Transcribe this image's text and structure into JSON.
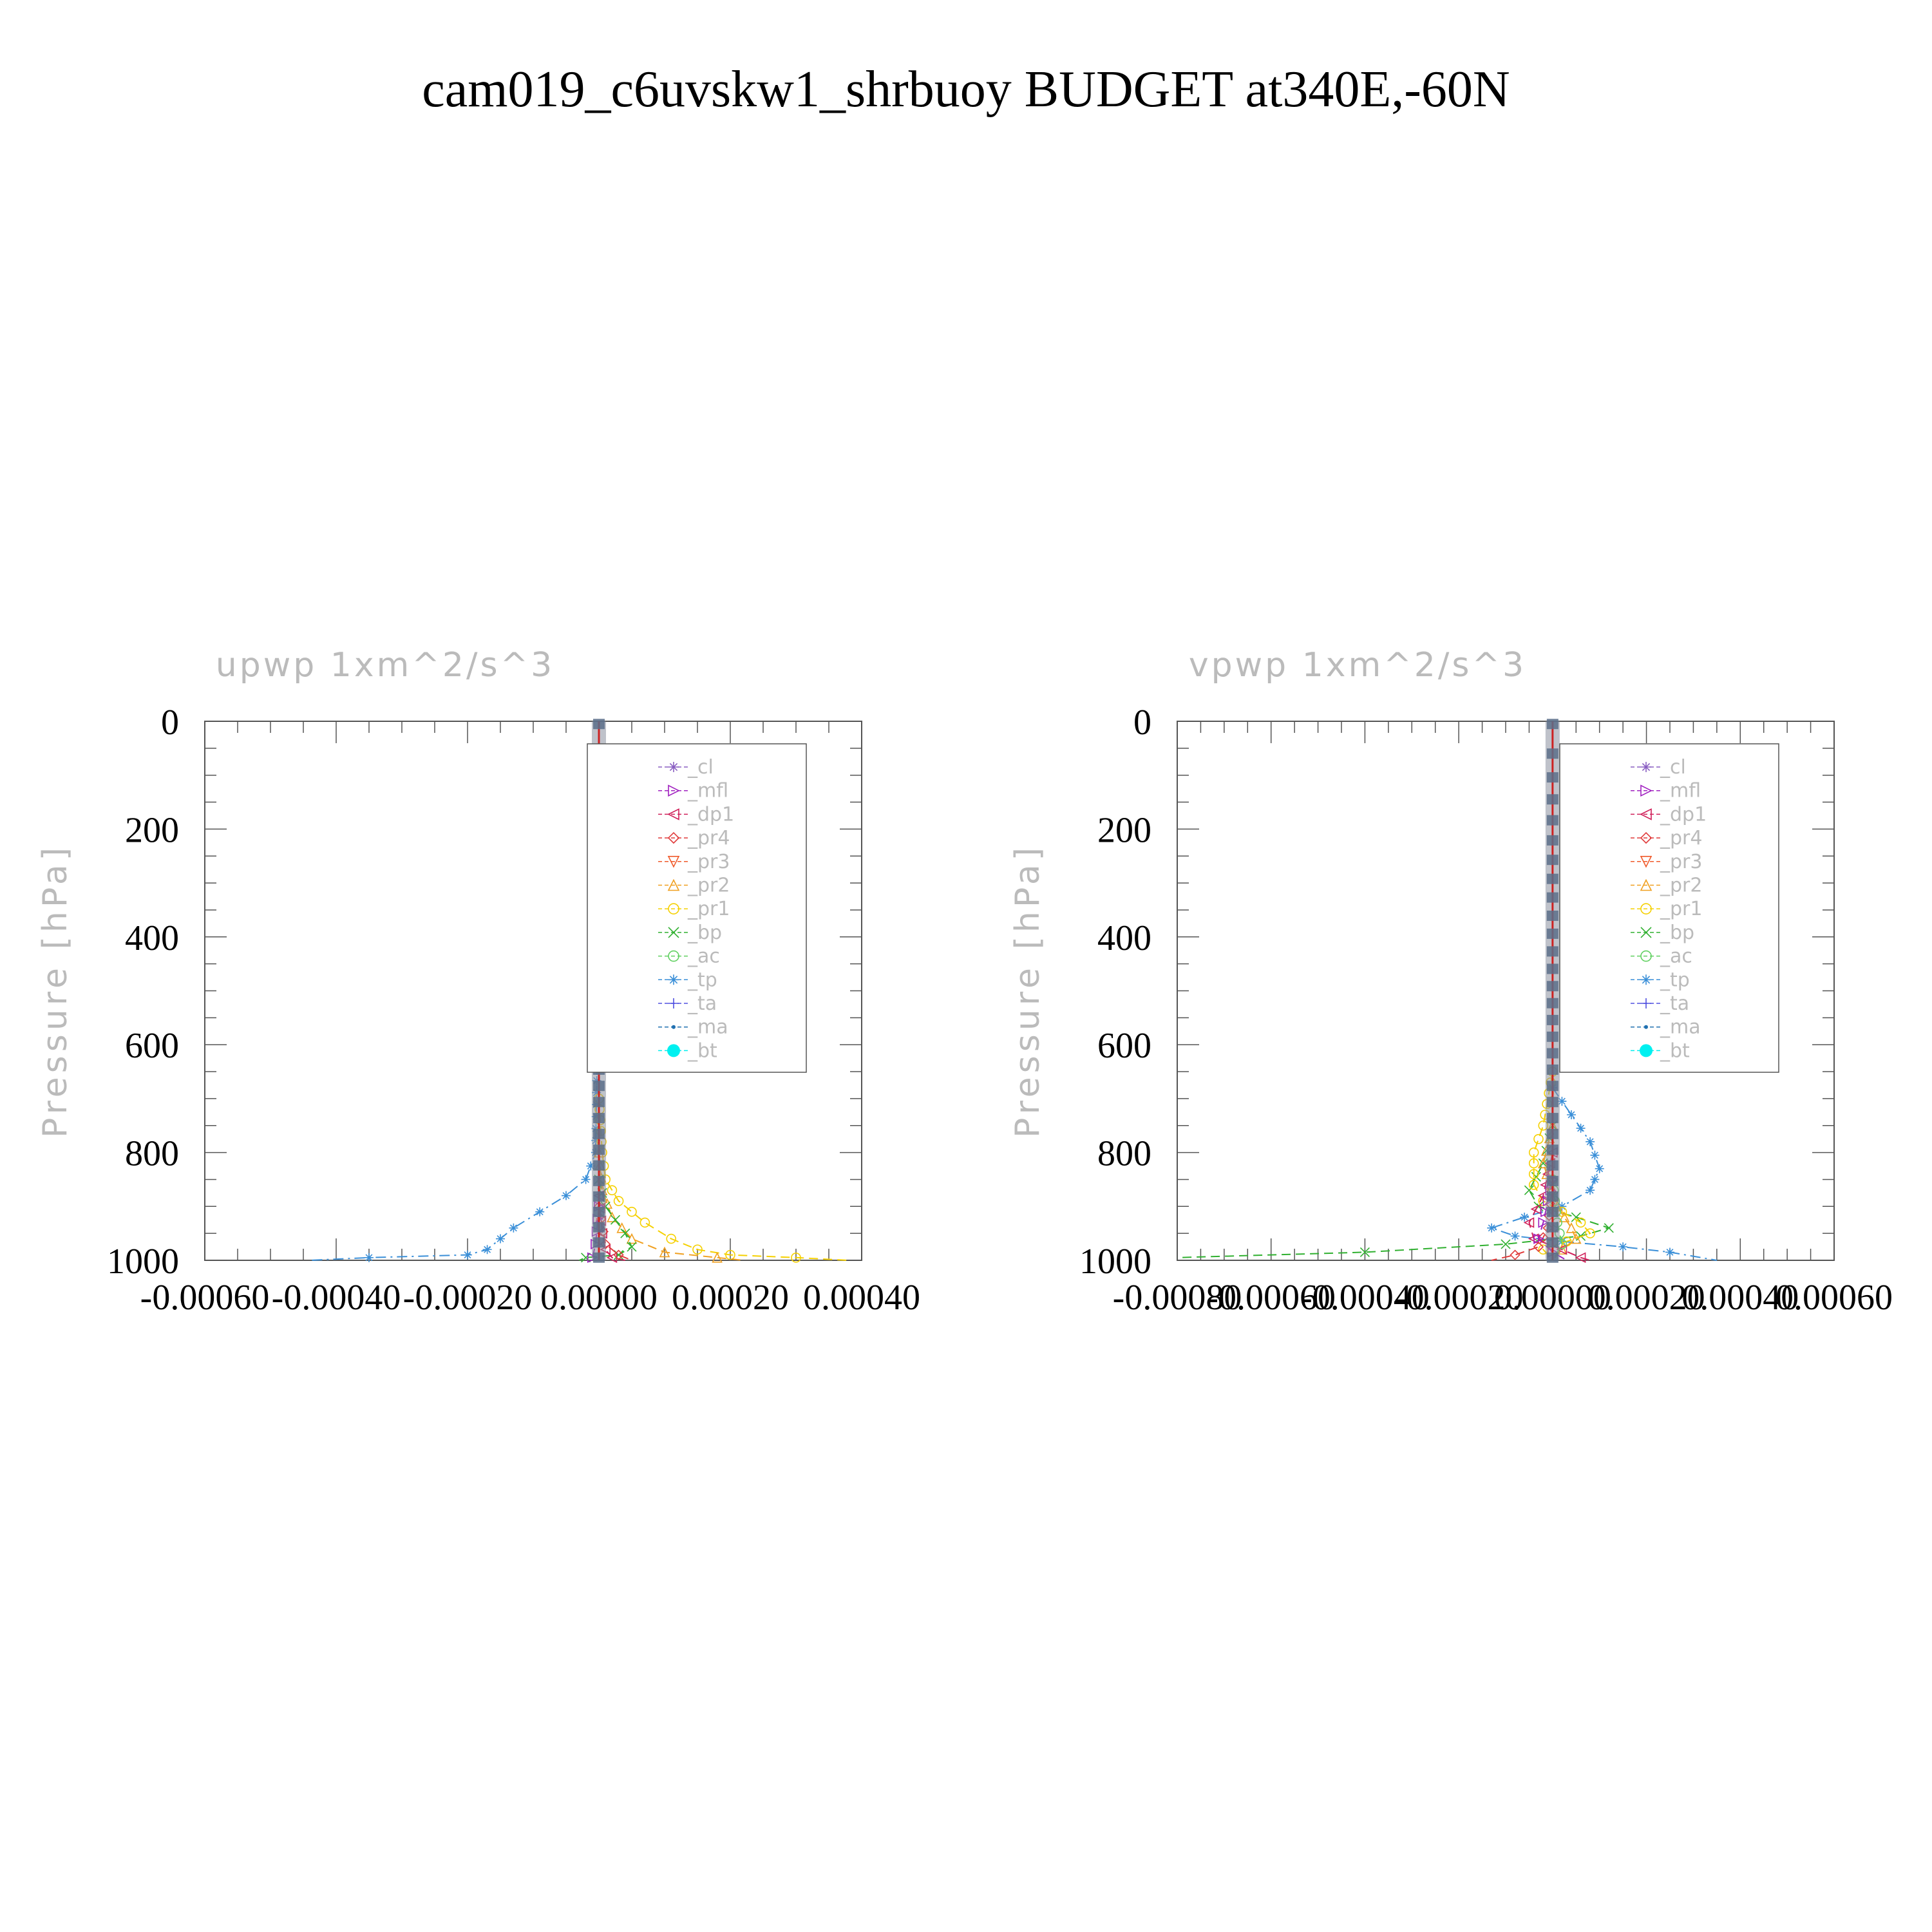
{
  "figure_title": "cam019_c6uvskw1_shrbuoy  BUDGET at340E,-60N",
  "legend_entries": [
    "_cl",
    "_mfl",
    "_dp1",
    "_pr4",
    "_pr3",
    "_pr2",
    "_pr1",
    "_bp",
    "_ac",
    "_tp",
    "_ta",
    "_ma",
    "_bt"
  ],
  "colors": {
    "_cl": "#8a5fc2",
    "_mfl": "#a020c0",
    "_dp1": "#d0205a",
    "_pr4": "#e03a3a",
    "_pr3": "#f05a2a",
    "_pr2": "#f0a020",
    "_pr1": "#f5d000",
    "_bp": "#30b030",
    "_ac": "#60d060",
    "_tp": "#3a8fd8",
    "_ta": "#5050e0",
    "_ma": "#2070b0",
    "_bt": "#00f0f0",
    "axis": "#555555",
    "muted_text": "#bbbbbb",
    "center_marker": "#5a6e8a",
    "center_line": "#cc2222"
  },
  "chart_data": [
    {
      "type": "line",
      "title": "upwp   1xm^2/s^3",
      "ylabel": "Pressure [hPa]",
      "xlabel": "",
      "xlim": [
        -0.0006,
        0.0004
      ],
      "ylim": [
        1000,
        0
      ],
      "y_inverted": true,
      "xticks": [
        -0.0006,
        -0.0004,
        -0.0002,
        0.0,
        0.0002,
        0.0004
      ],
      "xtick_labels": [
        "-0.00060",
        "-0.00040",
        "-0.00020",
        "0.00000",
        "0.00020",
        "0.00040"
      ],
      "yticks": [
        0,
        200,
        400,
        600,
        800,
        1000
      ],
      "ytick_labels": [
        "0",
        "200",
        "400",
        "600",
        "800",
        "1000"
      ],
      "legend": "top-right",
      "grid": false,
      "series": [
        {
          "name": "_tp",
          "style": "dash-dot",
          "points": [
            [
              0,
              400
            ],
            [
              -5e-06,
              800
            ],
            [
              -2e-05,
              850
            ],
            [
              -5e-05,
              880
            ],
            [
              -9e-05,
              910
            ],
            [
              -0.00013,
              940
            ],
            [
              -0.00015,
              960
            ],
            [
              -0.00017,
              980
            ],
            [
              -0.0002,
              990
            ],
            [
              -0.00035,
              995
            ],
            [
              -0.00044,
              1000
            ]
          ]
        },
        {
          "name": "_pr1",
          "style": "dash",
          "points": [
            [
              0,
              700
            ],
            [
              5e-06,
              800
            ],
            [
              1e-05,
              850
            ],
            [
              3e-05,
              890
            ],
            [
              7e-05,
              930
            ],
            [
              0.00011,
              960
            ],
            [
              0.00015,
              980
            ],
            [
              0.0002,
              990
            ],
            [
              0.0003,
              995
            ],
            [
              0.00038,
              1000
            ]
          ]
        },
        {
          "name": "_pr2",
          "style": "dash",
          "points": [
            [
              0,
              800
            ],
            [
              5e-06,
              870
            ],
            [
              2e-05,
              920
            ],
            [
              5e-05,
              960
            ],
            [
              0.0001,
              985
            ],
            [
              0.00018,
              995
            ],
            [
              0.00022,
              1000
            ]
          ]
        },
        {
          "name": "_bp",
          "style": "dash",
          "points": [
            [
              0,
              850
            ],
            [
              1e-05,
              900
            ],
            [
              4e-05,
              950
            ],
            [
              5e-05,
              975
            ],
            [
              3e-05,
              990
            ],
            [
              -2e-05,
              995
            ],
            [
              -3e-05,
              1000
            ]
          ]
        },
        {
          "name": "_dp1",
          "style": "dash",
          "points": [
            [
              0,
              880
            ],
            [
              5e-06,
              950
            ],
            [
              1e-05,
              980
            ],
            [
              2e-05,
              995
            ],
            [
              4e-05,
              1000
            ]
          ]
        },
        {
          "name": "_pr4",
          "style": "dash",
          "points": [
            [
              0,
              900
            ],
            [
              1e-05,
              970
            ],
            [
              3e-05,
              990
            ],
            [
              5e-05,
              1000
            ]
          ]
        },
        {
          "name": "_mfl",
          "style": "dash",
          "points": [
            [
              0,
              900
            ],
            [
              -5e-06,
              970
            ],
            [
              -1e-05,
              995
            ],
            [
              0,
              1000
            ]
          ]
        }
      ]
    },
    {
      "type": "line",
      "title": "vpwp   1xm^2/s^3",
      "ylabel": "Pressure [hPa]",
      "xlabel": "",
      "xlim": [
        -0.0008,
        0.0006
      ],
      "ylim": [
        1000,
        0
      ],
      "y_inverted": true,
      "xticks": [
        -0.0008,
        -0.0006,
        -0.0004,
        -0.0002,
        0.0,
        0.0002,
        0.0004,
        0.0006
      ],
      "xtick_labels": [
        "-0.00080",
        "-0.00060",
        "-0.00040",
        "-0.00020",
        "0.00000",
        "0.00020",
        "0.00040",
        "0.00060"
      ],
      "yticks": [
        0,
        200,
        400,
        600,
        800,
        1000
      ],
      "ytick_labels": [
        "0",
        "200",
        "400",
        "600",
        "800",
        "1000"
      ],
      "legend": "top-right",
      "grid": false,
      "series": [
        {
          "name": "_tp",
          "style": "dash-dot",
          "points": [
            [
              0,
              680
            ],
            [
              4e-05,
              730
            ],
            [
              8e-05,
              780
            ],
            [
              0.0001,
              830
            ],
            [
              8e-05,
              870
            ],
            [
              2e-05,
              900
            ],
            [
              -6e-05,
              920
            ],
            [
              -0.00013,
              940
            ],
            [
              -8e-05,
              955
            ],
            [
              2e-05,
              965
            ],
            [
              0.00015,
              975
            ],
            [
              0.00025,
              985
            ],
            [
              0.00035,
              1000
            ]
          ]
        },
        {
          "name": "_bp",
          "style": "dash",
          "points": [
            [
              0,
              750
            ],
            [
              -2e-05,
              820
            ],
            [
              -5e-05,
              870
            ],
            [
              -3e-05,
              900
            ],
            [
              5e-05,
              920
            ],
            [
              0.00012,
              940
            ],
            [
              6e-05,
              955
            ],
            [
              -0.0001,
              970
            ],
            [
              -0.0004,
              985
            ],
            [
              -0.0008,
              995
            ]
          ]
        },
        {
          "name": "_pr1",
          "style": "dash",
          "points": [
            [
              0,
              650
            ],
            [
              -2e-05,
              750
            ],
            [
              -4e-05,
              800
            ],
            [
              -4e-05,
              860
            ],
            [
              -2e-05,
              890
            ],
            [
              2e-05,
              910
            ],
            [
              6e-05,
              930
            ],
            [
              8e-05,
              950
            ],
            [
              3e-05,
              965
            ],
            [
              -2e-05,
              980
            ],
            [
              0,
              1000
            ]
          ]
        },
        {
          "name": "_pr2",
          "style": "dash",
          "points": [
            [
              0,
              750
            ],
            [
              -2e-05,
              820
            ],
            [
              1e-05,
              900
            ],
            [
              4e-05,
              940
            ],
            [
              5e-05,
              960
            ],
            [
              2e-05,
              980
            ],
            [
              0,
              1000
            ]
          ]
        },
        {
          "name": "_dp1",
          "style": "dash",
          "points": [
            [
              0,
              800
            ],
            [
              -2e-05,
              880
            ],
            [
              -5e-05,
              930
            ],
            [
              -4e-05,
              960
            ],
            [
              2e-05,
              980
            ],
            [
              6e-05,
              995
            ],
            [
              8e-05,
              1000
            ]
          ]
        },
        {
          "name": "_pr4",
          "style": "dash",
          "points": [
            [
              0,
              850
            ],
            [
              -1e-05,
              940
            ],
            [
              -3e-05,
              975
            ],
            [
              -8e-05,
              990
            ],
            [
              -0.00013,
              1000
            ]
          ]
        },
        {
          "name": "_mfl",
          "style": "dash",
          "points": [
            [
              0,
              850
            ],
            [
              -2e-05,
              930
            ],
            [
              -3e-05,
              960
            ],
            [
              0,
              985
            ],
            [
              3e-05,
              1000
            ]
          ]
        },
        {
          "name": "_ac",
          "style": "dash",
          "points": [
            [
              0,
              850
            ],
            [
              1e-05,
              930
            ],
            [
              2e-05,
              970
            ],
            [
              0,
              1000
            ]
          ]
        }
      ]
    }
  ]
}
